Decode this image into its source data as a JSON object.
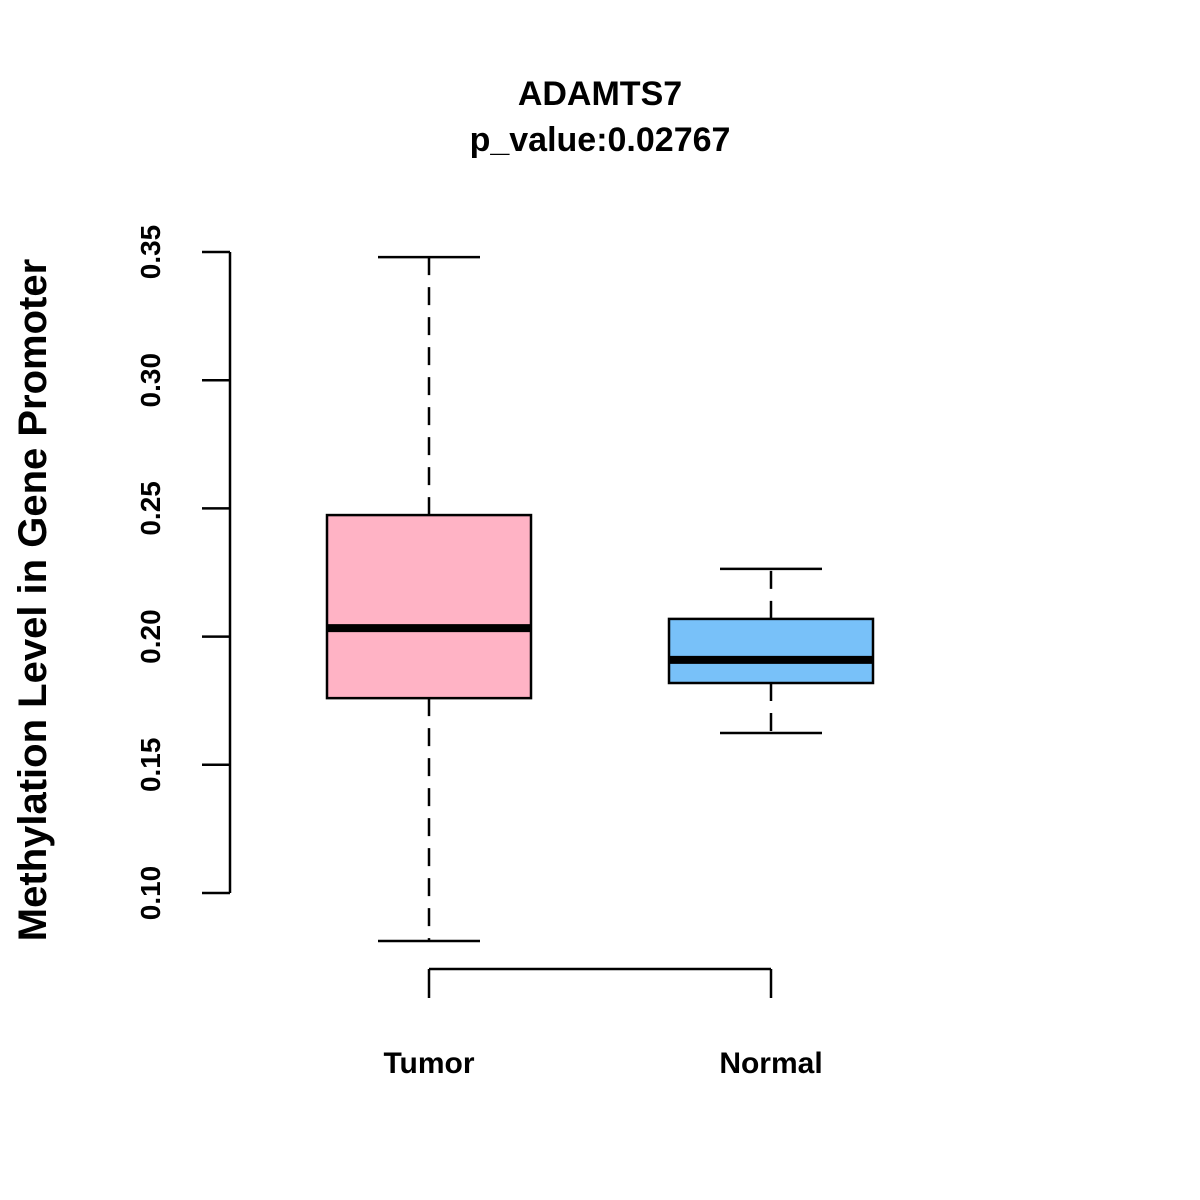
{
  "chart_data": {
    "type": "box",
    "title": "ADAMTS7",
    "subtitle": "p_value:0.02767",
    "xlabel": "",
    "ylabel": "Methylation Level in Gene Promoter",
    "ylim": [
      0.1,
      0.35
    ],
    "yticks": [
      "0.10",
      "0.15",
      "0.20",
      "0.25",
      "0.30",
      "0.35"
    ],
    "grid": false,
    "categories": [
      "Tumor",
      "Normal"
    ],
    "series": [
      {
        "name": "Tumor",
        "color": "#FFB3C5",
        "whisker_low": 0.0813,
        "q1": 0.176,
        "median": 0.2033,
        "q3": 0.2474,
        "whisker_high": 0.348
      },
      {
        "name": "Normal",
        "color": "#78C1F9",
        "whisker_low": 0.1624,
        "q1": 0.1819,
        "median": 0.1909,
        "q3": 0.2069,
        "whisker_high": 0.2264
      }
    ]
  }
}
